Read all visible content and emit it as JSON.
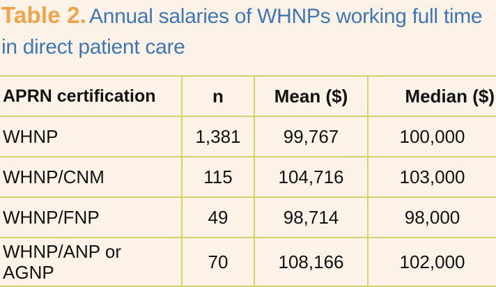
{
  "caption": {
    "label": "Table 2.",
    "text": "Annual salaries of WHNPs working full time in direct patient care"
  },
  "colors": {
    "background": "#fcf2e8",
    "caption_label": "#f0a34a",
    "caption_text": "#3f77b5",
    "grid_lines": "#d1d46a"
  },
  "table": {
    "headers": [
      "APRN certification",
      "n",
      "Mean ($)",
      "Median ($)"
    ],
    "rows": [
      [
        "WHNP",
        "1,381",
        "99,767",
        "100,000"
      ],
      [
        "WHNP/CNM",
        "115",
        "104,716",
        "103,000"
      ],
      [
        "WHNP/FNP",
        "49",
        "98,714",
        "98,000"
      ],
      [
        "WHNP/ANP or AGNP",
        "70",
        "108,166",
        "102,000"
      ]
    ]
  }
}
